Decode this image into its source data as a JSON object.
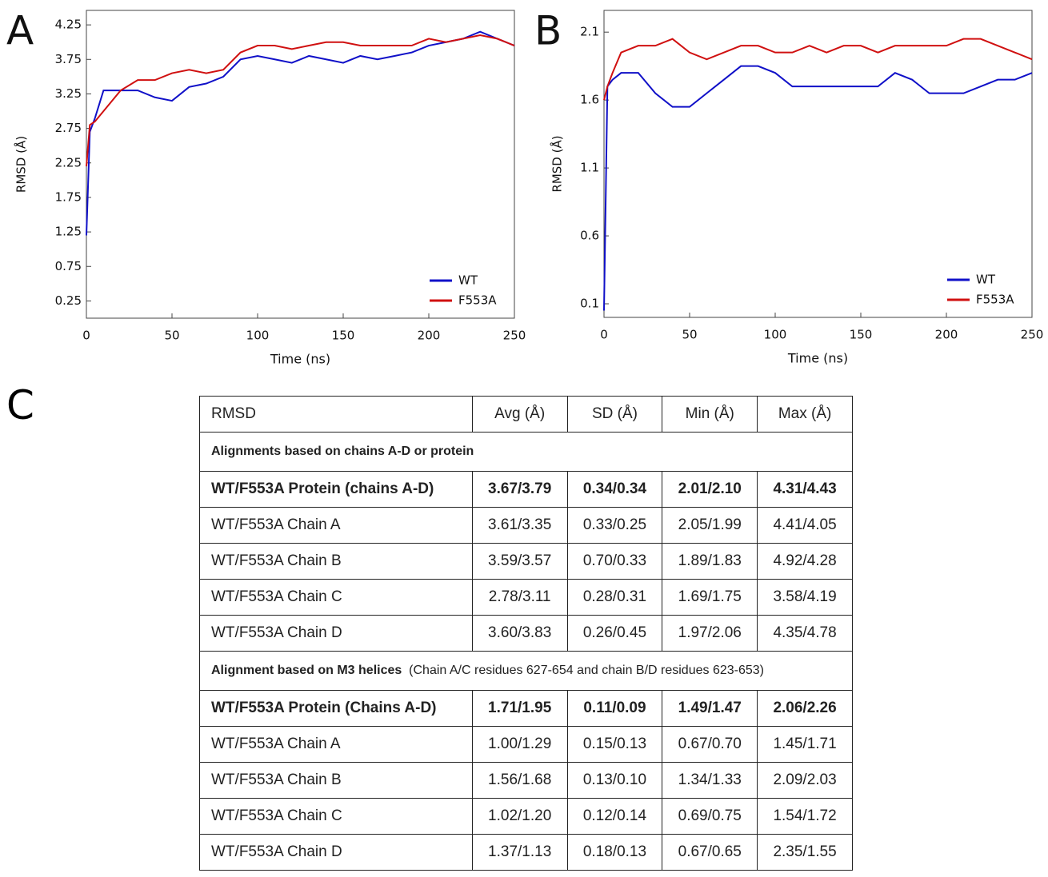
{
  "chart_data": [
    {
      "type": "line",
      "label": "A",
      "xlabel": "Time (ns)",
      "ylabel": "RMSD (Å)",
      "xlim": [
        0,
        250
      ],
      "xticks": [
        0,
        50,
        100,
        150,
        200,
        250
      ],
      "ylim": [
        0,
        4.46
      ],
      "yticks": [
        0.25,
        0.75,
        1.25,
        1.75,
        2.25,
        2.75,
        3.25,
        3.75,
        4.25
      ],
      "legend": "lower right",
      "x": [
        0,
        2,
        5,
        10,
        20,
        30,
        40,
        50,
        60,
        70,
        80,
        90,
        100,
        110,
        120,
        130,
        140,
        150,
        160,
        170,
        180,
        190,
        200,
        210,
        220,
        230,
        240,
        250
      ],
      "series": [
        {
          "name": "WT",
          "color": "#1010c8",
          "values": [
            1.2,
            2.7,
            2.9,
            3.3,
            3.3,
            3.3,
            3.2,
            3.15,
            3.35,
            3.4,
            3.5,
            3.75,
            3.8,
            3.75,
            3.7,
            3.8,
            3.75,
            3.7,
            3.8,
            3.75,
            3.8,
            3.85,
            3.95,
            4.0,
            4.05,
            4.15,
            4.05,
            3.95
          ]
        },
        {
          "name": "F553A",
          "color": "#d01010",
          "values": [
            2.2,
            2.8,
            2.85,
            3.0,
            3.3,
            3.45,
            3.45,
            3.55,
            3.6,
            3.55,
            3.6,
            3.85,
            3.95,
            3.95,
            3.9,
            3.95,
            4.0,
            4.0,
            3.95,
            3.95,
            3.95,
            3.95,
            4.05,
            4.0,
            4.05,
            4.1,
            4.05,
            3.95
          ]
        }
      ]
    },
    {
      "type": "line",
      "label": "B",
      "xlabel": "Time (ns)",
      "ylabel": "RMSD (Å)",
      "xlim": [
        0,
        250
      ],
      "xticks": [
        0,
        50,
        100,
        150,
        200,
        250
      ],
      "ylim": [
        0,
        2.26
      ],
      "yticks": [
        0.1,
        0.6,
        1.1,
        1.6,
        2.1
      ],
      "legend": "lower right",
      "x": [
        0,
        2,
        5,
        10,
        20,
        30,
        40,
        50,
        60,
        70,
        80,
        90,
        100,
        110,
        120,
        130,
        140,
        150,
        160,
        170,
        180,
        190,
        200,
        210,
        220,
        230,
        240,
        250
      ],
      "series": [
        {
          "name": "WT",
          "color": "#1010c8",
          "values": [
            0.05,
            1.7,
            1.75,
            1.8,
            1.8,
            1.65,
            1.55,
            1.55,
            1.65,
            1.75,
            1.85,
            1.85,
            1.8,
            1.7,
            1.7,
            1.7,
            1.7,
            1.7,
            1.7,
            1.8,
            1.75,
            1.65,
            1.65,
            1.65,
            1.7,
            1.75,
            1.75,
            1.8
          ]
        },
        {
          "name": "F553A",
          "color": "#d01010",
          "values": [
            1.6,
            1.7,
            1.8,
            1.95,
            2.0,
            2.0,
            2.05,
            1.95,
            1.9,
            1.95,
            2.0,
            2.0,
            1.95,
            1.95,
            2.0,
            1.95,
            2.0,
            2.0,
            1.95,
            2.0,
            2.0,
            2.0,
            2.0,
            2.05,
            2.05,
            2.0,
            1.95,
            1.9
          ]
        }
      ]
    }
  ],
  "table": {
    "label": "C",
    "header": [
      "RMSD",
      "Avg (Å)",
      "SD (Å)",
      "Min (Å)",
      "Max (Å)"
    ],
    "sections": [
      {
        "title": "Alignments based on chains A-D or protein",
        "rows": [
          [
            "WT/F553A Protein (chains A-D)",
            "3.67/3.79",
            "0.34/0.34",
            "2.01/2.10",
            "4.31/4.43"
          ],
          [
            "WT/F553A Chain A",
            "3.61/3.35",
            "0.33/0.25",
            "2.05/1.99",
            "4.41/4.05"
          ],
          [
            "WT/F553A Chain B",
            "3.59/3.57",
            "0.70/0.33",
            "1.89/1.83",
            "4.92/4.28"
          ],
          [
            "WT/F553A Chain C",
            "2.78/3.11",
            "0.28/0.31",
            "1.69/1.75",
            "3.58/4.19"
          ],
          [
            "WT/F553A Chain D",
            "3.60/3.83",
            "0.26/0.45",
            "1.97/2.06",
            "4.35/4.78"
          ]
        ]
      },
      {
        "title": "Alignment based on M3 helices",
        "note": "(Chain A/C residues 627-654 and chain B/D residues 623-653)",
        "rows": [
          [
            "WT/F553A Protein (Chains A-D)",
            "1.71/1.95",
            "0.11/0.09",
            "1.49/1.47",
            "2.06/2.26"
          ],
          [
            "WT/F553A Chain A",
            "1.00/1.29",
            "0.15/0.13",
            "0.67/0.70",
            "1.45/1.71"
          ],
          [
            "WT/F553A Chain B",
            "1.56/1.68",
            "0.13/0.10",
            "1.34/1.33",
            "2.09/2.03"
          ],
          [
            "WT/F553A Chain C",
            "1.02/1.20",
            "0.12/0.14",
            "0.69/0.75",
            "1.54/1.72"
          ],
          [
            "WT/F553A Chain D",
            "1.37/1.13",
            "0.18/0.13",
            "0.67/0.65",
            "2.35/1.55"
          ]
        ]
      }
    ]
  }
}
